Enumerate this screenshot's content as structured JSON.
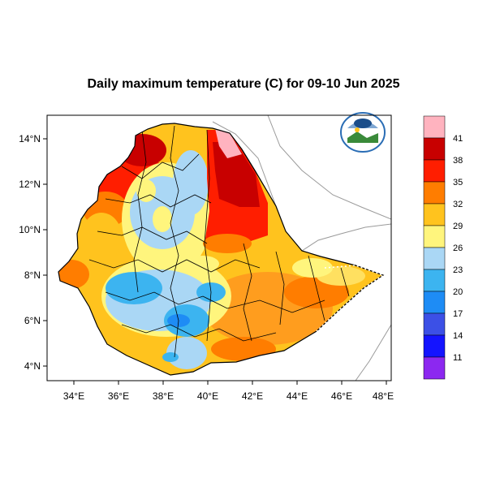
{
  "title": "Daily maximum temperature (C) for 09-10 Jun 2025",
  "axes": {
    "x_ticks": [
      "34°E",
      "36°E",
      "38°E",
      "40°E",
      "42°E",
      "44°E",
      "46°E",
      "48°E"
    ],
    "y_ticks": [
      "14°N",
      "12°N",
      "10°N",
      "8°N",
      "6°N",
      "4°N"
    ]
  },
  "colorbar": {
    "labels": [
      "41",
      "38",
      "35",
      "32",
      "29",
      "26",
      "23",
      "20",
      "17",
      "14",
      "11"
    ],
    "colors": [
      "#ffb3bf",
      "#c80000",
      "#ff1e00",
      "#ff7d00",
      "#ffc31e",
      "#fff57d",
      "#aad7f5",
      "#3cb4f0",
      "#1e8cf5",
      "#3c50e6",
      "#1414ff",
      "#8c28f0"
    ]
  },
  "logo": {
    "org": "Ethiopian Meteorology Institute"
  }
}
